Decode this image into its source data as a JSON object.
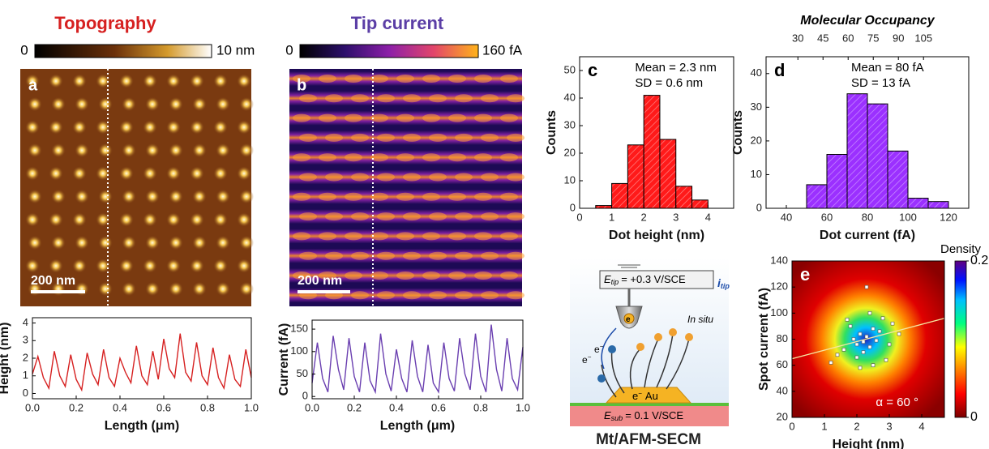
{
  "figure": {
    "topography": {
      "title": "Topography",
      "cbar_min": "0",
      "cbar_max": "10 nm",
      "panel": "a",
      "scale": "200 nm"
    },
    "tip_current": {
      "title": "Tip current",
      "cbar_min": "0",
      "cbar_max": "160 fA",
      "panel": "b",
      "scale": "200 nm"
    },
    "schematic": {
      "e_symbol": "E",
      "tip_sub": "tip",
      "e_tip_value": "= +0.3 V/SCE",
      "i_symbol": "i",
      "in_situ": "In situ",
      "electron": "e",
      "minus": "−",
      "au": "Au",
      "sub_sub": "sub",
      "e_sub_value": "= 0.1 V/SCE",
      "caption": "Mt/AFM-SECM"
    }
  },
  "chart_data": [
    {
      "type": "line",
      "xlabel": "Length (μm)",
      "ylabel": "Height (nm)",
      "label_color": "#d62020",
      "x": [
        0,
        0.025,
        0.05,
        0.075,
        0.1,
        0.125,
        0.15,
        0.175,
        0.2,
        0.225,
        0.25,
        0.275,
        0.3,
        0.325,
        0.35,
        0.375,
        0.4,
        0.425,
        0.45,
        0.475,
        0.5,
        0.525,
        0.55,
        0.575,
        0.6,
        0.625,
        0.65,
        0.675,
        0.7,
        0.725,
        0.75,
        0.775,
        0.8,
        0.825,
        0.85,
        0.875,
        0.9,
        0.925,
        0.95,
        0.975,
        1
      ],
      "series": [
        {
          "color": "#d62020",
          "values": [
            1.1,
            2.1,
            0.9,
            0.3,
            2.4,
            1.0,
            0.4,
            2.2,
            0.8,
            0.2,
            2.3,
            1.1,
            0.5,
            2.5,
            0.9,
            0.4,
            2.0,
            1.2,
            0.6,
            2.7,
            1.0,
            0.5,
            2.4,
            0.8,
            3.1,
            1.4,
            0.9,
            3.4,
            1.2,
            0.7,
            2.9,
            1.0,
            0.5,
            2.6,
            0.9,
            0.3,
            2.2,
            0.8,
            0.4,
            2.5,
            0.9
          ]
        }
      ],
      "xlim": [
        0,
        1
      ],
      "xticks": [
        {
          "value": 0,
          "label": "0.0"
        },
        0.2,
        0.4,
        0.6,
        0.8,
        {
          "value": 1,
          "label": "1.0"
        }
      ],
      "ylim": [
        -0.3,
        4.3
      ],
      "yticks": [
        0,
        1,
        2,
        3,
        4
      ]
    },
    {
      "type": "line",
      "xlabel": "Length (μm)",
      "ylabel": "Current (fA)",
      "label_color": "#5b3ea6",
      "x": [
        0,
        0.025,
        0.05,
        0.075,
        0.1,
        0.125,
        0.15,
        0.175,
        0.2,
        0.225,
        0.25,
        0.275,
        0.3,
        0.325,
        0.35,
        0.375,
        0.4,
        0.425,
        0.45,
        0.475,
        0.5,
        0.525,
        0.55,
        0.575,
        0.6,
        0.625,
        0.65,
        0.675,
        0.7,
        0.725,
        0.75,
        0.775,
        0.8,
        0.825,
        0.85,
        0.875,
        0.9,
        0.925,
        0.95,
        0.975,
        1
      ],
      "series": [
        {
          "color": "#6a3fb0",
          "values": [
            30,
            120,
            40,
            10,
            135,
            60,
            15,
            130,
            45,
            10,
            120,
            35,
            10,
            140,
            50,
            12,
            105,
            40,
            10,
            125,
            45,
            10,
            115,
            30,
            10,
            120,
            40,
            12,
            130,
            50,
            15,
            140,
            45,
            10,
            160,
            60,
            12,
            130,
            40,
            15,
            110
          ]
        }
      ],
      "xlim": [
        0,
        1
      ],
      "xticks": [
        {
          "value": 0,
          "label": "0.0"
        },
        0.2,
        0.4,
        0.6,
        0.8,
        {
          "value": 1,
          "label": "1.0"
        }
      ],
      "ylim": [
        -5,
        170
      ],
      "yticks": [
        0,
        50,
        100,
        150
      ]
    },
    {
      "type": "histogram",
      "label": "c",
      "annotations": [
        "Mean = 2.3 nm",
        "SD = 0.6 nm"
      ],
      "xlabel": "Dot height (nm)",
      "ylabel": "Counts",
      "color": "#ff1a1a",
      "bins": [
        0.5,
        1,
        1.5,
        2,
        2.5,
        3,
        3.5,
        4
      ],
      "counts": [
        1,
        9,
        23,
        41,
        25,
        8,
        3
      ],
      "xlim": [
        0,
        4.8
      ],
      "xticks": [
        0,
        1,
        2,
        3,
        4
      ],
      "ylim": [
        0,
        55
      ],
      "yticks": [
        0,
        10,
        20,
        30,
        40,
        50
      ]
    },
    {
      "type": "histogram",
      "label": "d",
      "annotations": [
        "Mean = 80 fA",
        "SD = 13 fA"
      ],
      "xlabel": "Dot current (fA)",
      "ylabel": "Counts",
      "color": "#9b30ff",
      "bins": [
        50,
        60,
        70,
        80,
        90,
        100,
        110,
        120
      ],
      "counts": [
        7,
        16,
        34,
        31,
        17,
        3,
        2
      ],
      "xlim": [
        30,
        130
      ],
      "xticks": [
        40,
        60,
        80,
        100,
        120
      ],
      "ylim": [
        0,
        45
      ],
      "yticks": [
        0,
        10,
        20,
        30,
        40
      ],
      "x2label": "Molecular Occupancy",
      "x2lim": [
        11,
        132
      ],
      "x2ticks": [
        30,
        45,
        60,
        75,
        90,
        105
      ]
    },
    {
      "type": "scatter",
      "label": "e",
      "annotations": [
        "α = 60 °"
      ],
      "xlabel": "Height (nm)",
      "ylabel": "Spot current (fA)",
      "x": [
        1.6,
        1.9,
        2.0,
        2.1,
        2.2,
        2.3,
        2.4,
        2.5,
        2.6,
        2.2,
        2.0,
        1.8,
        2.7,
        2.9,
        3.1,
        1.4,
        1.2,
        2.4,
        2.8,
        3.3,
        1.7,
        2.1,
        2.5,
        2.3,
        3.0
      ],
      "values": [
        72,
        80,
        76,
        84,
        78,
        82,
        74,
        88,
        79,
        70,
        66,
        90,
        86,
        64,
        92,
        68,
        62,
        100,
        96,
        84,
        95,
        58,
        60,
        120,
        76
      ],
      "fit": {
        "x": [
          0,
          4.7
        ],
        "y": [
          65,
          96
        ],
        "color": "#f5e6a0"
      },
      "xlim": [
        0,
        4.7
      ],
      "xticks": [
        0,
        1,
        2,
        3,
        4
      ],
      "ylim": [
        20,
        140
      ],
      "yticks": [
        20,
        40,
        60,
        80,
        100,
        120,
        140
      ],
      "colorbar": {
        "label": "Density",
        "lim": [
          0,
          0.2
        ],
        "ticks": [
          0,
          0.2
        ]
      }
    }
  ]
}
